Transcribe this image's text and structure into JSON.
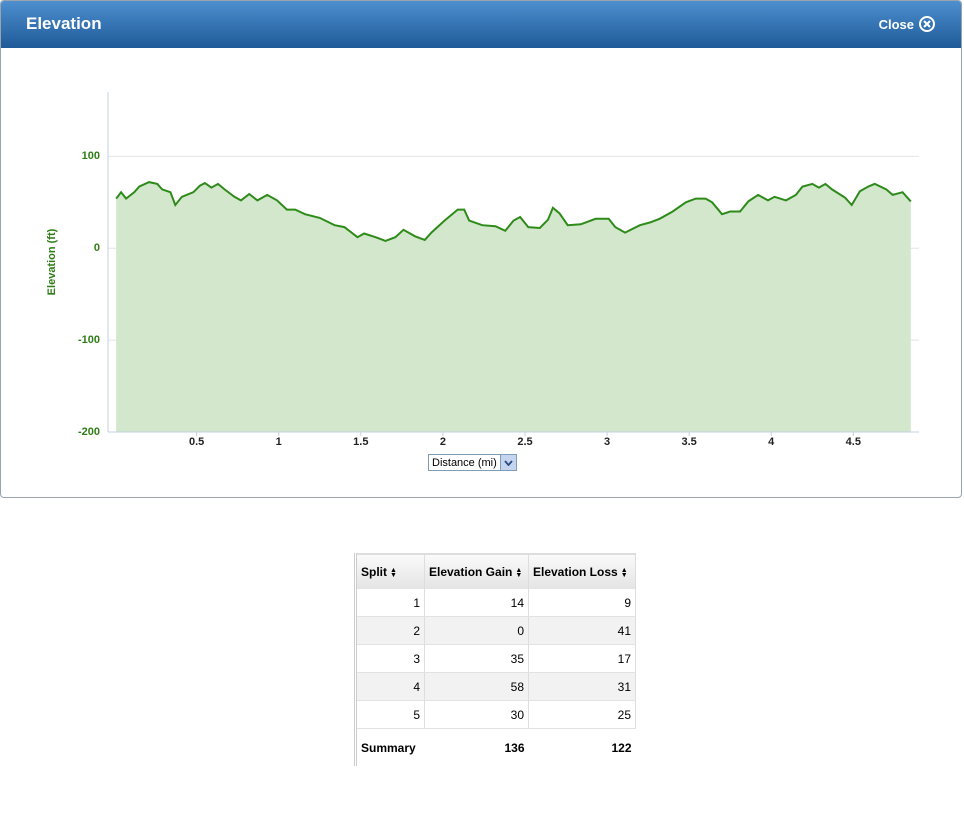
{
  "dialog": {
    "title": "Elevation",
    "close": "Close",
    "x_selector": "Distance (mi)"
  },
  "chart_data": {
    "type": "area",
    "ylabel": "Elevation (ft)",
    "color": "#2e8b1a",
    "fill": "#d2e7cc",
    "grid": true,
    "x": [
      0.01,
      0.04,
      0.07,
      0.12,
      0.15,
      0.21,
      0.26,
      0.29,
      0.34,
      0.37,
      0.41,
      0.48,
      0.52,
      0.55,
      0.59,
      0.63,
      0.67,
      0.73,
      0.77,
      0.82,
      0.87,
      0.93,
      0.99,
      1.05,
      1.1,
      1.16,
      1.25,
      1.34,
      1.4,
      1.48,
      1.52,
      1.59,
      1.65,
      1.71,
      1.76,
      1.83,
      1.89,
      1.93,
      2.01,
      2.09,
      2.13,
      2.16,
      2.24,
      2.32,
      2.38,
      2.43,
      2.47,
      2.52,
      2.59,
      2.64,
      2.67,
      2.71,
      2.76,
      2.84,
      2.93,
      3.01,
      3.05,
      3.11,
      3.2,
      3.26,
      3.32,
      3.4,
      3.48,
      3.54,
      3.6,
      3.64,
      3.7,
      3.75,
      3.81,
      3.86,
      3.92,
      3.98,
      4.02,
      4.09,
      4.15,
      4.19,
      4.25,
      4.29,
      4.33,
      4.37,
      4.45,
      4.49,
      4.54,
      4.59,
      4.63,
      4.7,
      4.74,
      4.8,
      4.85
    ],
    "values": [
      54,
      61,
      54,
      61,
      67,
      72,
      70,
      64,
      61,
      47,
      56,
      61,
      68,
      71,
      66,
      70,
      64,
      56,
      52,
      59,
      52,
      58,
      52,
      42,
      42,
      37,
      33,
      25,
      23,
      12,
      16,
      12,
      8,
      12,
      20,
      13,
      9,
      17,
      30,
      42,
      42,
      30,
      25,
      24,
      19,
      30,
      34,
      23,
      22,
      31,
      44,
      38,
      25,
      26,
      32,
      32,
      23,
      17,
      25,
      28,
      32,
      40,
      50,
      54,
      54,
      50,
      37,
      40,
      40,
      51,
      58,
      52,
      56,
      52,
      58,
      67,
      70,
      66,
      70,
      64,
      55,
      47,
      62,
      67,
      70,
      64,
      58,
      61,
      51
    ],
    "xlim": [
      -0.04,
      4.9
    ],
    "xticks": [
      0.5,
      1,
      1.5,
      2,
      2.5,
      3,
      3.5,
      4,
      4.5
    ],
    "ylim": [
      -200,
      170
    ],
    "yticks": [
      -200,
      -100,
      0,
      100
    ]
  },
  "table": {
    "headers": [
      "Split",
      "Elevation Gain",
      "Elevation Loss"
    ],
    "rows": [
      [
        1,
        14,
        9
      ],
      [
        2,
        0,
        41
      ],
      [
        3,
        35,
        17
      ],
      [
        4,
        58,
        31
      ],
      [
        5,
        30,
        25
      ]
    ],
    "summary": [
      "Summary",
      136,
      122
    ]
  }
}
